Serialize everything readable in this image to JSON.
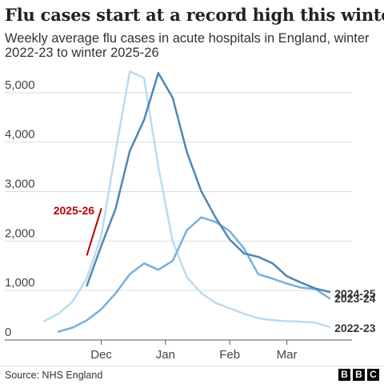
{
  "header": {
    "title": "Flu cases start at a record high this winter",
    "subtitle": "Weekly average flu cases in acute hospitals in England, winter 2022-23 to winter 2025-26"
  },
  "footer": {
    "source": "Source: NHS England",
    "logo_letters": [
      "B",
      "B",
      "C"
    ]
  },
  "chart_data": {
    "type": "line",
    "title": "Flu cases start at a record high this winter",
    "subtitle": "Weekly average flu cases in acute hospitals in England, winter 2022-23 to winter 2025-26",
    "xlabel": "",
    "ylabel": "",
    "x_unit": "week",
    "x_ticks": [
      {
        "label": "Dec",
        "x": 4
      },
      {
        "label": "Jan",
        "x": 8.5
      },
      {
        "label": "Feb",
        "x": 13
      },
      {
        "label": "Mar",
        "x": 17
      }
    ],
    "xlim": [
      -0.4,
      21
    ],
    "ylim": [
      0,
      5500
    ],
    "y_ticks": [
      0,
      1000,
      2000,
      3000,
      4000,
      5000
    ],
    "y_tick_labels": [
      "0",
      "1,000",
      "2,000",
      "3,000",
      "4,000",
      "5,000"
    ],
    "grid": true,
    "legend": "direct labels at line ends",
    "series": [
      {
        "name": "2022-23",
        "color": "#b9dcef",
        "x": [
          0,
          1,
          2,
          3,
          4,
          5,
          6,
          7,
          8,
          9,
          10,
          11,
          12,
          13,
          14,
          15,
          16,
          17,
          18,
          19,
          20
        ],
        "y": [
          380,
          530,
          780,
          1250,
          2100,
          3800,
          5430,
          5300,
          3500,
          2000,
          1270,
          950,
          750,
          640,
          530,
          440,
          400,
          380,
          370,
          350,
          260
        ]
      },
      {
        "name": "2023-24",
        "color": "#77b0db",
        "x": [
          1,
          2,
          3,
          4,
          5,
          6,
          7,
          8,
          9,
          10,
          11,
          12,
          13,
          14,
          15,
          16,
          17,
          18,
          19,
          20
        ],
        "y": [
          170,
          250,
          400,
          620,
          940,
          1330,
          1550,
          1420,
          1600,
          2220,
          2480,
          2390,
          2200,
          1850,
          1330,
          1240,
          1140,
          1060,
          1030,
          840
        ]
      },
      {
        "name": "2024-25",
        "color": "#4f86b5",
        "x": [
          3,
          4,
          5,
          6,
          7,
          8,
          9,
          10,
          11,
          12,
          13,
          14,
          15,
          16,
          17,
          18,
          19,
          20
        ],
        "y": [
          1100,
          1900,
          2650,
          3820,
          4450,
          5400,
          4900,
          3800,
          3010,
          2480,
          2030,
          1750,
          1680,
          1550,
          1290,
          1160,
          1040,
          970
        ]
      },
      {
        "name": "2025-26",
        "color": "#b80000",
        "x": [
          3,
          4
        ],
        "y": [
          1720,
          2650
        ]
      }
    ]
  }
}
